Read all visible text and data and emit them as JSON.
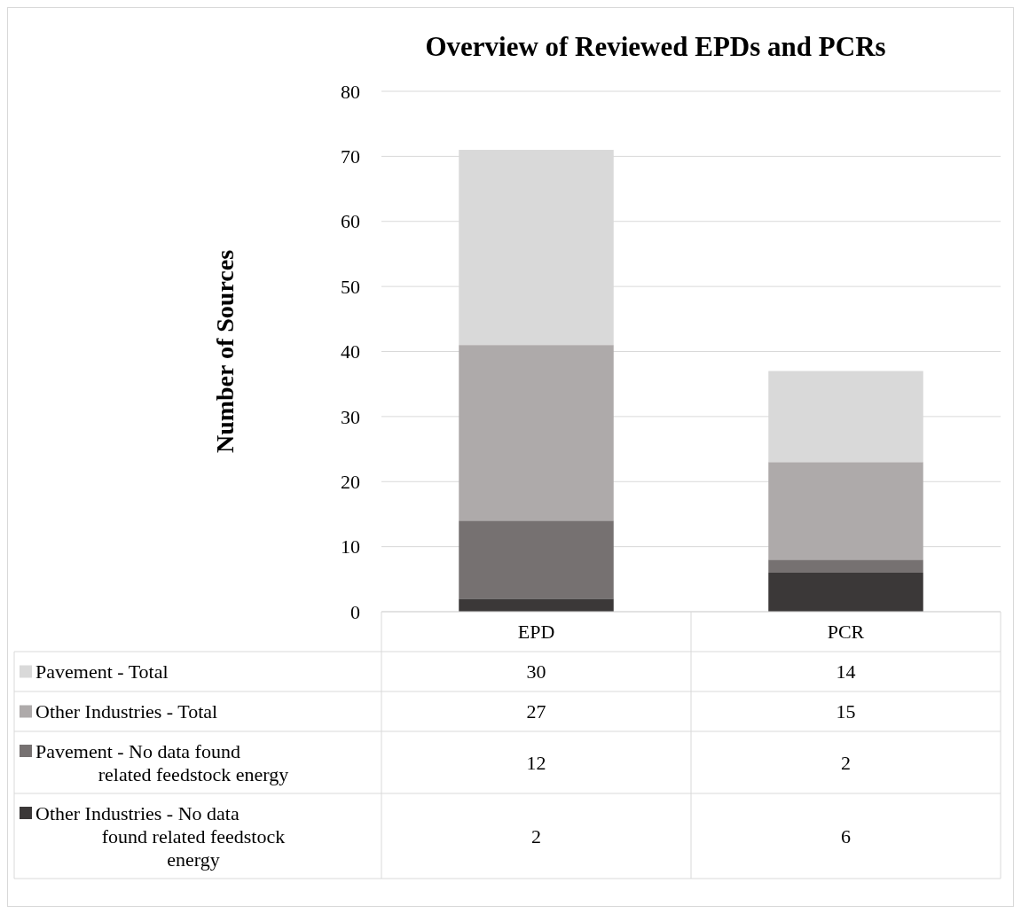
{
  "chart_data": {
    "type": "bar",
    "title": "Overview of Reviewed EPDs and PCRs",
    "ylabel": "Number of Sources",
    "categories": [
      "EPD",
      "PCR"
    ],
    "stacked": true,
    "series": [
      {
        "name": "Other Industries - No data found related feedstock energy",
        "color": "#3b3838",
        "values": [
          2,
          6
        ]
      },
      {
        "name": "Pavement - No data found related feedstock energy",
        "color": "#767171",
        "values": [
          12,
          2
        ]
      },
      {
        "name": "Other Industries - Total",
        "color": "#aeaaaa",
        "values": [
          27,
          15
        ]
      },
      {
        "name": "Pavement - Total",
        "color": "#d9d9d9",
        "values": [
          30,
          14
        ]
      }
    ],
    "ylim": [
      0,
      80
    ],
    "yticks": [
      0,
      10,
      20,
      30,
      40,
      50,
      60,
      70,
      80
    ],
    "grid": "y",
    "legend": "bottom",
    "data_labels": true
  }
}
